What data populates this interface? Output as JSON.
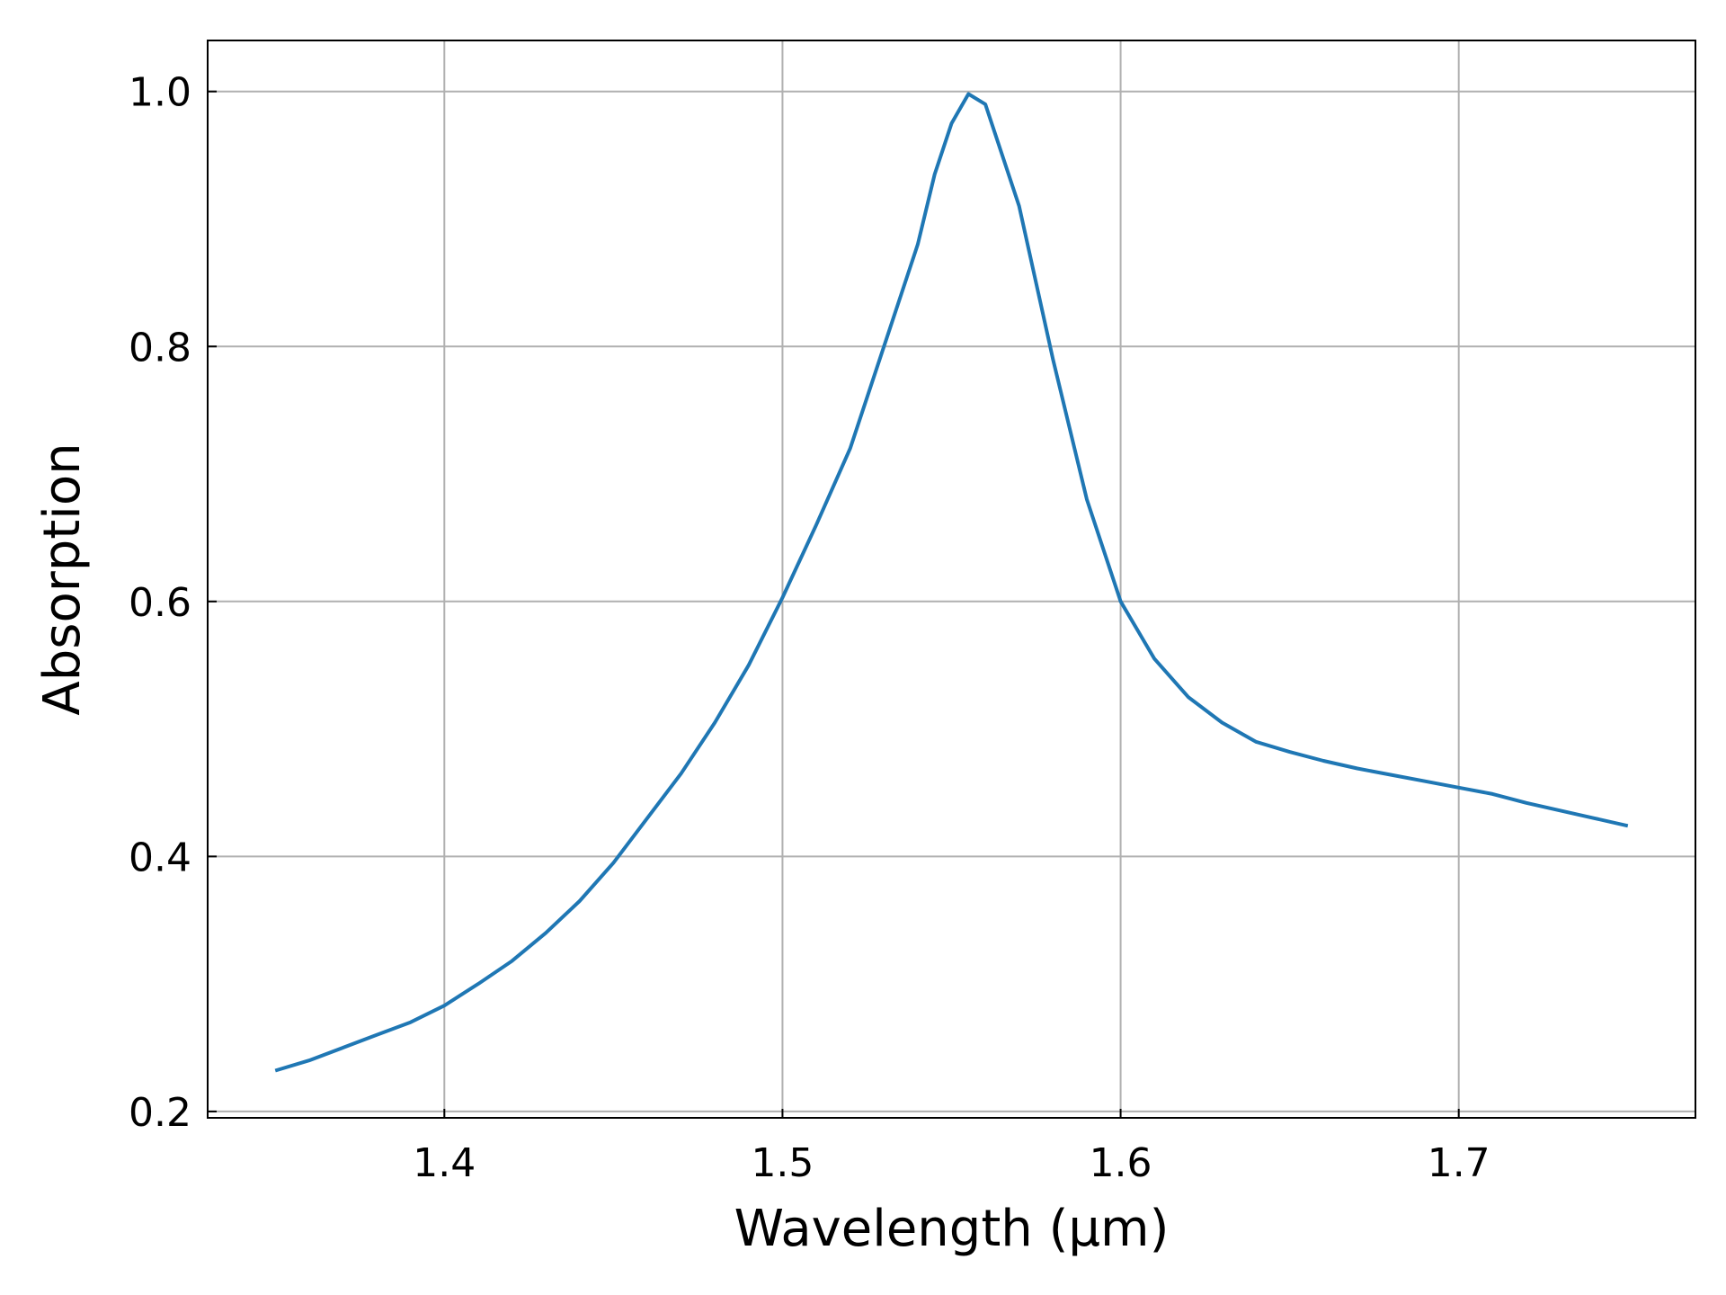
{
  "chart_data": {
    "type": "line",
    "title": "",
    "xlabel": "Wavelength (μm)",
    "ylabel": "Absorption",
    "xlim": [
      1.33,
      1.77
    ],
    "ylim": [
      0.195,
      1.04
    ],
    "xticks": [
      1.4,
      1.5,
      1.6,
      1.7
    ],
    "yticks": [
      0.2,
      0.4,
      0.6,
      0.8,
      1.0
    ],
    "xtick_labels": [
      "1.4",
      "1.5",
      "1.6",
      "1.7"
    ],
    "ytick_labels": [
      "0.2",
      "0.4",
      "0.6",
      "0.8",
      "1.0"
    ],
    "grid": true,
    "legend": "none",
    "colors": {
      "line": "#1f77b4",
      "grid": "#b0b0b0",
      "axes": "#000000"
    },
    "series": [
      {
        "x": [
          1.35,
          1.36,
          1.37,
          1.38,
          1.39,
          1.4,
          1.41,
          1.42,
          1.43,
          1.44,
          1.45,
          1.46,
          1.47,
          1.48,
          1.49,
          1.5,
          1.51,
          1.52,
          1.53,
          1.54,
          1.545,
          1.55,
          1.555,
          1.56,
          1.57,
          1.58,
          1.59,
          1.6,
          1.61,
          1.62,
          1.63,
          1.64,
          1.65,
          1.66,
          1.67,
          1.68,
          1.69,
          1.7,
          1.71,
          1.72,
          1.73,
          1.74,
          1.75
        ],
        "y": [
          0.232,
          0.24,
          0.25,
          0.26,
          0.27,
          0.283,
          0.3,
          0.318,
          0.34,
          0.365,
          0.395,
          0.43,
          0.465,
          0.505,
          0.55,
          0.603,
          0.66,
          0.72,
          0.8,
          0.88,
          0.935,
          0.975,
          0.998,
          0.99,
          0.91,
          0.79,
          0.68,
          0.6,
          0.555,
          0.525,
          0.505,
          0.49,
          0.482,
          0.475,
          0.469,
          0.464,
          0.459,
          0.454,
          0.449,
          0.442,
          0.436,
          0.43,
          0.424
        ]
      }
    ]
  }
}
